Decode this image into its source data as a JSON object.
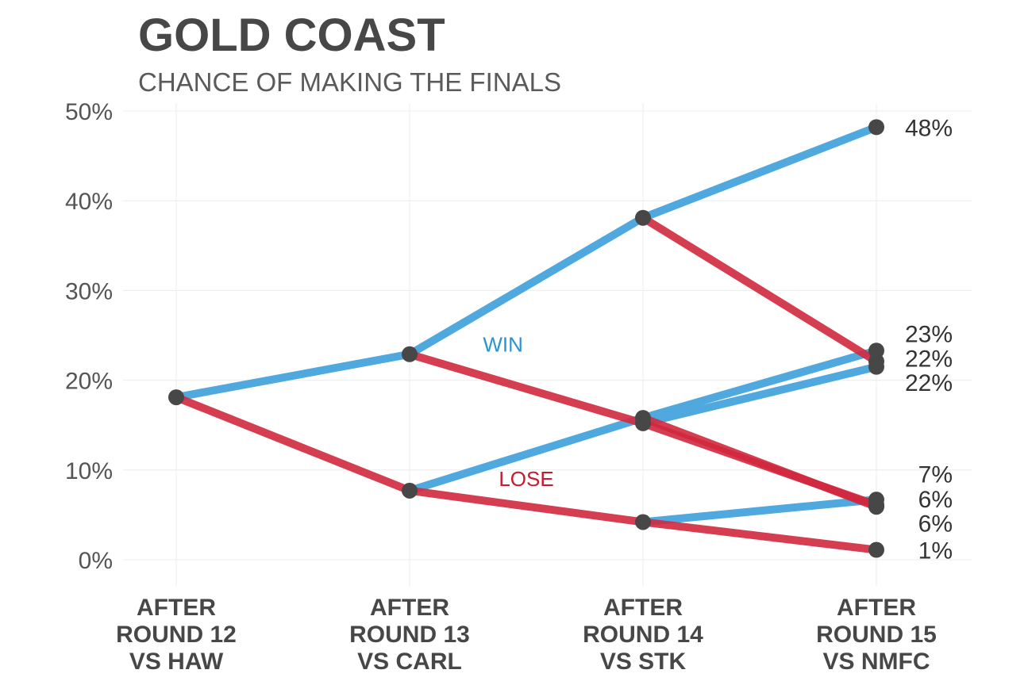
{
  "chart_data": {
    "type": "line",
    "title": "GOLD COAST",
    "subtitle": "CHANCE OF MAKING THE FINALS",
    "ylim": [
      0,
      50
    ],
    "yticks": [
      0,
      10,
      20,
      30,
      40,
      50
    ],
    "ytick_labels": [
      "0%",
      "10%",
      "20%",
      "30%",
      "40%",
      "50%"
    ],
    "grid": true,
    "categories": [
      [
        "AFTER",
        "ROUND 12",
        "VS HAW"
      ],
      [
        "AFTER",
        "ROUND 13",
        "VS CARL"
      ],
      [
        "AFTER",
        "ROUND 14",
        "VS STK"
      ],
      [
        "AFTER",
        "ROUND 15",
        "VS NMFC"
      ]
    ],
    "colors": {
      "win": "#4fa9df",
      "lose": "#d0283e",
      "node": "#474747"
    },
    "annotations": [
      {
        "text": "WIN",
        "color": "#2a93d6",
        "at_x": 1.4,
        "at_y": 24
      },
      {
        "text": "LOSE",
        "color": "#c81b30",
        "at_x": 1.5,
        "at_y": 9
      }
    ],
    "nodes": [
      {
        "x": 0,
        "y": 18.1
      },
      {
        "x": 1,
        "y": 22.9
      },
      {
        "x": 1,
        "y": 7.7
      },
      {
        "x": 2,
        "y": 38.1
      },
      {
        "x": 2,
        "y": 15.8
      },
      {
        "x": 2,
        "y": 15.2
      },
      {
        "x": 2,
        "y": 4.2
      },
      {
        "x": 3,
        "y": 48.2
      },
      {
        "x": 3,
        "y": 23.3
      },
      {
        "x": 3,
        "y": 22.1
      },
      {
        "x": 3,
        "y": 21.5
      },
      {
        "x": 3,
        "y": 6.7
      },
      {
        "x": 3,
        "y": 6.1
      },
      {
        "x": 3,
        "y": 5.9
      },
      {
        "x": 3,
        "y": 1.1
      }
    ],
    "segments": [
      {
        "outcome": "win",
        "from": [
          0,
          18.1
        ],
        "to": [
          1,
          22.9
        ]
      },
      {
        "outcome": "lose",
        "from": [
          0,
          18.1
        ],
        "to": [
          1,
          7.7
        ]
      },
      {
        "outcome": "win",
        "from": [
          1,
          22.9
        ],
        "to": [
          2,
          38.1
        ]
      },
      {
        "outcome": "lose",
        "from": [
          1,
          22.9
        ],
        "to": [
          2,
          15.2
        ]
      },
      {
        "outcome": "win",
        "from": [
          1,
          7.7
        ],
        "to": [
          2,
          15.8
        ]
      },
      {
        "outcome": "lose",
        "from": [
          1,
          7.7
        ],
        "to": [
          2,
          4.2
        ]
      },
      {
        "outcome": "win",
        "from": [
          2,
          38.1
        ],
        "to": [
          3,
          48.2
        ]
      },
      {
        "outcome": "lose",
        "from": [
          2,
          38.1
        ],
        "to": [
          3,
          22.1
        ]
      },
      {
        "outcome": "win",
        "from": [
          2,
          15.2
        ],
        "to": [
          3,
          21.5
        ]
      },
      {
        "outcome": "lose",
        "from": [
          2,
          15.2
        ],
        "to": [
          3,
          6.1
        ]
      },
      {
        "outcome": "win",
        "from": [
          2,
          15.8
        ],
        "to": [
          3,
          23.3
        ]
      },
      {
        "outcome": "lose",
        "from": [
          2,
          15.8
        ],
        "to": [
          3,
          5.9
        ]
      },
      {
        "outcome": "win",
        "from": [
          2,
          4.2
        ],
        "to": [
          3,
          6.7
        ]
      },
      {
        "outcome": "lose",
        "from": [
          2,
          4.2
        ],
        "to": [
          3,
          1.1
        ]
      }
    ],
    "end_labels": [
      {
        "text": "48%",
        "at_y": 48.2
      },
      {
        "text": "23%",
        "at_y": 25.2
      },
      {
        "text": "22%",
        "at_y": 22.5
      },
      {
        "text": "22%",
        "at_y": 19.8
      },
      {
        "text": "7%",
        "at_y": 9.6
      },
      {
        "text": "6%",
        "at_y": 6.8
      },
      {
        "text": "6%",
        "at_y": 4.1
      },
      {
        "text": "1%",
        "at_y": 1.1
      }
    ]
  }
}
